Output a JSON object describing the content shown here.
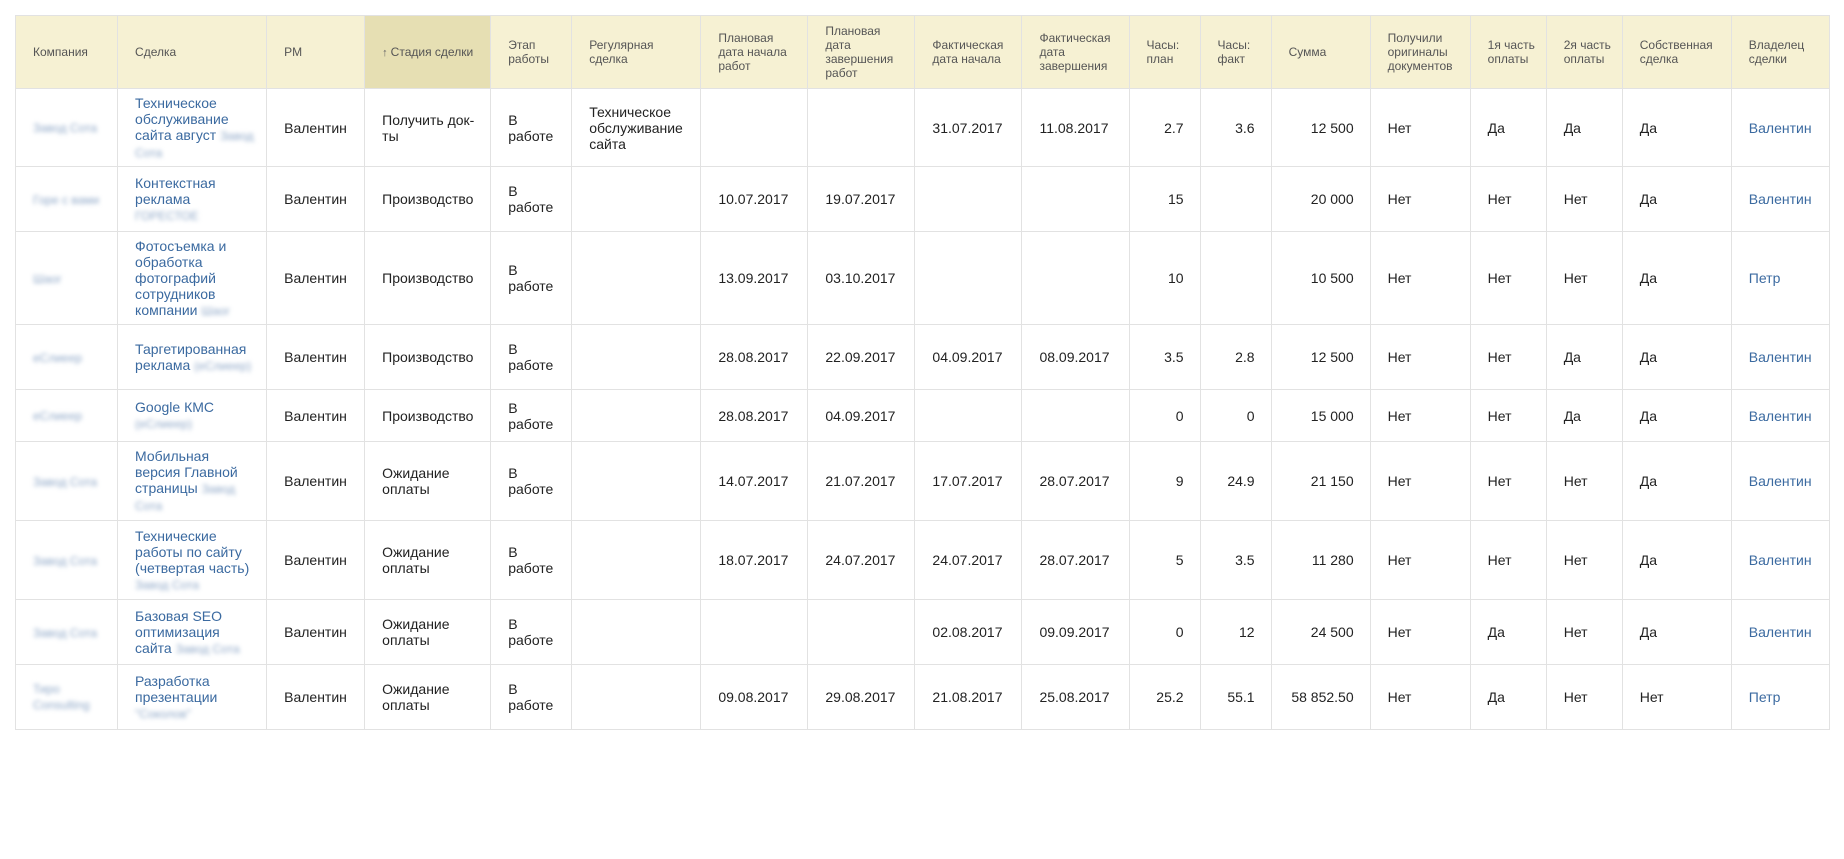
{
  "table": {
    "headers": {
      "company": "Компания",
      "deal": "Сделка",
      "pm": "PM",
      "stage": "Стадия сделки",
      "work_stage": "Этап работы",
      "regular": "Регулярная сделка",
      "plan_start": "Плановая дата начала работ",
      "plan_end": "Плановая дата завершения работ",
      "fact_start": "Фактическая дата начала",
      "fact_end": "Фактическая дата завершения",
      "hours_plan": "Часы: план",
      "hours_fact": "Часы: факт",
      "sum": "Сумма",
      "originals": "Получили оригиналы документов",
      "pay1": "1я часть оплаты",
      "pay2": "2я часть оплаты",
      "own": "Собственная сделка",
      "owner": "Владелец сделки"
    },
    "sort_arrow": "↑",
    "rows": [
      {
        "company": "Завод Сота",
        "deal": "Техническое обслуживание сайта август",
        "deal_sub": "Завод Сота",
        "pm": "Валентин",
        "stage": "Получить док-ты",
        "work_stage": "В работе",
        "regular": "Техническое обслуживание сайта",
        "plan_start": "",
        "plan_end": "",
        "fact_start": "31.07.2017",
        "fact_end": "11.08.2017",
        "hours_plan": "2.7",
        "hours_fact": "3.6",
        "sum": "12 500",
        "originals": "Нет",
        "pay1": "Да",
        "pay2": "Да",
        "own": "Да",
        "owner": "Валентин"
      },
      {
        "company": "Горе с вами",
        "deal": "Контекстная реклама",
        "deal_sub": "ГОРЕСТОЕ",
        "pm": "Валентин",
        "stage": "Производство",
        "work_stage": "В работе",
        "regular": "",
        "plan_start": "10.07.2017",
        "plan_end": "19.07.2017",
        "fact_start": "",
        "fact_end": "",
        "hours_plan": "15",
        "hours_fact": "",
        "sum": "20 000",
        "originals": "Нет",
        "pay1": "Нет",
        "pay2": "Нет",
        "own": "Да",
        "owner": "Валентин"
      },
      {
        "company": "Шаог",
        "deal": "Фотосъемка и обработка фотографий сотрудников компании",
        "deal_sub": "Шаог",
        "pm": "Валентин",
        "stage": "Производство",
        "work_stage": "В работе",
        "regular": "",
        "plan_start": "13.09.2017",
        "plan_end": "03.10.2017",
        "fact_start": "",
        "fact_end": "",
        "hours_plan": "10",
        "hours_fact": "",
        "sum": "10 500",
        "originals": "Нет",
        "pay1": "Нет",
        "pay2": "Нет",
        "own": "Да",
        "owner": "Петр"
      },
      {
        "company": "еСлиеер",
        "deal": "Таргетированная реклама",
        "deal_sub": "(еСлиеер)",
        "pm": "Валентин",
        "stage": "Производство",
        "work_stage": "В работе",
        "regular": "",
        "plan_start": "28.08.2017",
        "plan_end": "22.09.2017",
        "fact_start": "04.09.2017",
        "fact_end": "08.09.2017",
        "hours_plan": "3.5",
        "hours_fact": "2.8",
        "sum": "12 500",
        "originals": "Нет",
        "pay1": "Нет",
        "pay2": "Да",
        "own": "Да",
        "owner": "Валентин"
      },
      {
        "company": "еСлиеер",
        "deal": "Google КМС",
        "deal_sub": "(еСлиеер)",
        "pm": "Валентин",
        "stage": "Производство",
        "work_stage": "В работе",
        "regular": "",
        "plan_start": "28.08.2017",
        "plan_end": "04.09.2017",
        "fact_start": "",
        "fact_end": "",
        "hours_plan": "0",
        "hours_fact": "0",
        "sum": "15 000",
        "originals": "Нет",
        "pay1": "Нет",
        "pay2": "Да",
        "own": "Да",
        "owner": "Валентин"
      },
      {
        "company": "Завод Сота",
        "deal": "Мобильная версия Главной страницы",
        "deal_sub": "Завод Сота",
        "pm": "Валентин",
        "stage": "Ожидание оплаты",
        "work_stage": "В работе",
        "regular": "",
        "plan_start": "14.07.2017",
        "plan_end": "21.07.2017",
        "fact_start": "17.07.2017",
        "fact_end": "28.07.2017",
        "hours_plan": "9",
        "hours_fact": "24.9",
        "sum": "21 150",
        "originals": "Нет",
        "pay1": "Нет",
        "pay2": "Нет",
        "own": "Да",
        "owner": "Валентин"
      },
      {
        "company": "Завод Сота",
        "deal": "Технические работы по сайту (четвертая часть)",
        "deal_sub": "Завод Сота",
        "pm": "Валентин",
        "stage": "Ожидание оплаты",
        "work_stage": "В работе",
        "regular": "",
        "plan_start": "18.07.2017",
        "plan_end": "24.07.2017",
        "fact_start": "24.07.2017",
        "fact_end": "28.07.2017",
        "hours_plan": "5",
        "hours_fact": "3.5",
        "sum": "11 280",
        "originals": "Нет",
        "pay1": "Нет",
        "pay2": "Нет",
        "own": "Да",
        "owner": "Валентин"
      },
      {
        "company": "Завод Сота",
        "deal": "Базовая SEO оптимизация сайта",
        "deal_sub": "Завод Сота",
        "pm": "Валентин",
        "stage": "Ожидание оплаты",
        "work_stage": "В работе",
        "regular": "",
        "plan_start": "",
        "plan_end": "",
        "fact_start": "02.08.2017",
        "fact_end": "09.09.2017",
        "hours_plan": "0",
        "hours_fact": "12",
        "sum": "24 500",
        "originals": "Нет",
        "pay1": "Да",
        "pay2": "Нет",
        "own": "Да",
        "owner": "Валентин"
      },
      {
        "company": "Тиро Consulting",
        "deal": "Разработка презентации",
        "deal_sub": "\"Соколов\"",
        "pm": "Валентин",
        "stage": "Ожидание оплаты",
        "work_stage": "В работе",
        "regular": "",
        "plan_start": "09.08.2017",
        "plan_end": "29.08.2017",
        "fact_start": "21.08.2017",
        "fact_end": "25.08.2017",
        "hours_plan": "25.2",
        "hours_fact": "55.1",
        "sum": "58 852.50",
        "originals": "Нет",
        "pay1": "Да",
        "pay2": "Нет",
        "own": "Нет",
        "owner": "Петр"
      }
    ]
  }
}
